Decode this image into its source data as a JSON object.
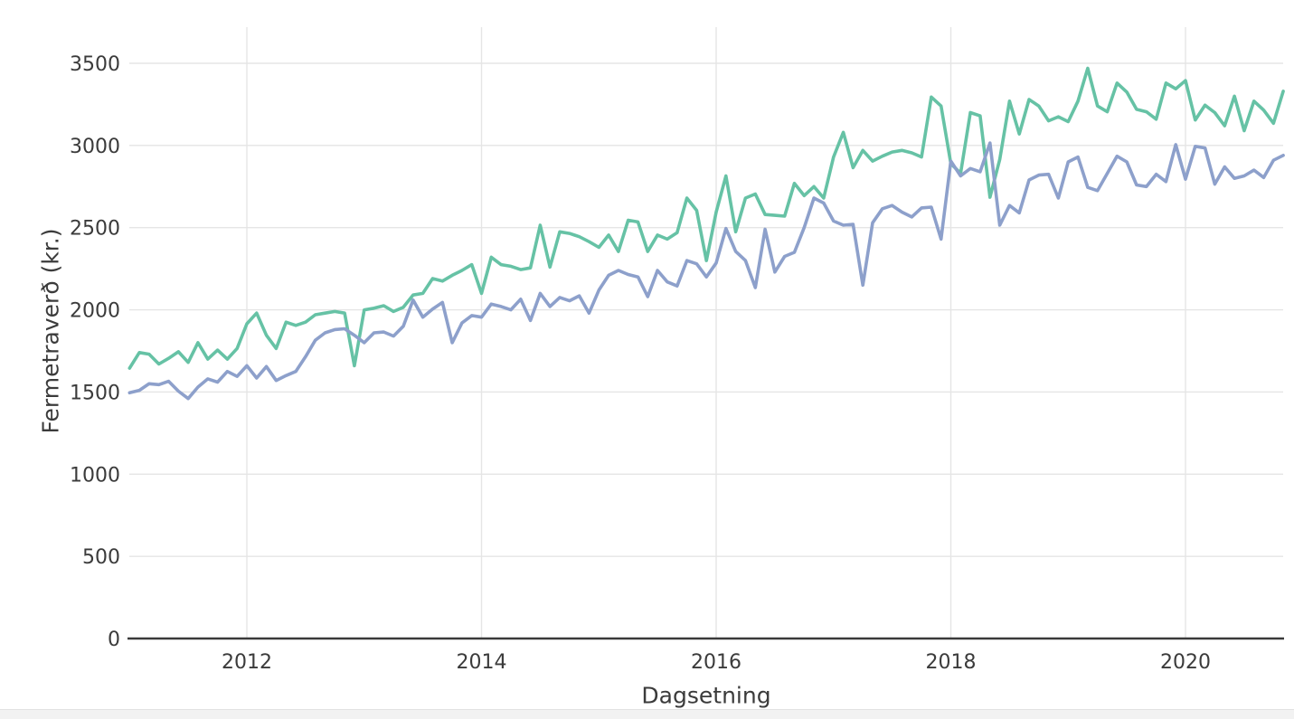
{
  "page": {
    "background_color": "#ffffff",
    "footer_strip_color": "#f2f2f2",
    "text_color": "#3b3b3b",
    "gridline_color": "#e5e5e5",
    "axisline_color": "#3a3a3a"
  },
  "chart_data": {
    "type": "line",
    "title": "",
    "xlabel": "Dagsetning",
    "ylabel": "Fermetraverð (kr.)",
    "grid": true,
    "legend_position": "none",
    "ylim": [
      0,
      3640
    ],
    "x_unit": "monthly",
    "x_range_start": "2011-01",
    "x_range_end": "2020-11",
    "x_ticks": [
      {
        "year": 2012,
        "label": "2012"
      },
      {
        "year": 2014,
        "label": "2014"
      },
      {
        "year": 2016,
        "label": "2016"
      },
      {
        "year": 2018,
        "label": "2018"
      },
      {
        "year": 2020,
        "label": "2020"
      }
    ],
    "y_ticks": [
      {
        "value": 0,
        "label": "0"
      },
      {
        "value": 500,
        "label": "500"
      },
      {
        "value": 1000,
        "label": "1000"
      },
      {
        "value": 1500,
        "label": "1500"
      },
      {
        "value": 2000,
        "label": "2000"
      },
      {
        "value": 2500,
        "label": "2500"
      },
      {
        "value": 3000,
        "label": "3000"
      },
      {
        "value": 3500,
        "label": "3500"
      }
    ],
    "series": [
      {
        "name": "series_green",
        "color": "#66c2a5",
        "values": [
          1645,
          1740,
          1730,
          1670,
          1705,
          1745,
          1680,
          1800,
          1700,
          1755,
          1700,
          1765,
          1915,
          1980,
          1845,
          1765,
          1925,
          1905,
          1925,
          1970,
          1980,
          1990,
          1980,
          1660,
          2000,
          2010,
          2025,
          1990,
          2015,
          2090,
          2100,
          2190,
          2175,
          2210,
          2240,
          2275,
          2100,
          2320,
          2275,
          2265,
          2245,
          2255,
          2515,
          2260,
          2475,
          2465,
          2445,
          2415,
          2380,
          2455,
          2355,
          2545,
          2535,
          2355,
          2455,
          2430,
          2470,
          2680,
          2605,
          2300,
          2595,
          2815,
          2475,
          2680,
          2705,
          2580,
          2575,
          2570,
          2770,
          2695,
          2750,
          2680,
          2930,
          3080,
          2865,
          2970,
          2905,
          2935,
          2960,
          2970,
          2955,
          2930,
          3295,
          3240,
          2890,
          2830,
          3200,
          3180,
          2685,
          2915,
          3270,
          3070,
          3280,
          3240,
          3150,
          3175,
          3145,
          3270,
          3470,
          3240,
          3205,
          3380,
          3325,
          3220,
          3205,
          3160,
          3380,
          3345,
          3395,
          3155,
          3245,
          3200,
          3120,
          3300,
          3090,
          3270,
          3215,
          3135,
          3330
        ]
      },
      {
        "name": "series_purple",
        "color": "#8da0cb",
        "values": [
          1495,
          1510,
          1550,
          1545,
          1565,
          1505,
          1460,
          1530,
          1580,
          1560,
          1625,
          1595,
          1660,
          1585,
          1655,
          1570,
          1600,
          1625,
          1715,
          1815,
          1860,
          1880,
          1885,
          1845,
          1800,
          1860,
          1865,
          1840,
          1900,
          2060,
          1955,
          2005,
          2045,
          1800,
          1920,
          1965,
          1955,
          2035,
          2020,
          2000,
          2065,
          1935,
          2100,
          2020,
          2075,
          2055,
          2085,
          1980,
          2120,
          2210,
          2240,
          2215,
          2200,
          2080,
          2240,
          2170,
          2145,
          2300,
          2280,
          2200,
          2285,
          2495,
          2355,
          2300,
          2135,
          2490,
          2230,
          2325,
          2350,
          2500,
          2680,
          2650,
          2540,
          2515,
          2520,
          2150,
          2530,
          2615,
          2635,
          2595,
          2565,
          2620,
          2625,
          2430,
          2905,
          2815,
          2860,
          2840,
          3015,
          2515,
          2635,
          2590,
          2790,
          2820,
          2825,
          2680,
          2900,
          2930,
          2745,
          2725,
          2830,
          2935,
          2900,
          2760,
          2750,
          2825,
          2780,
          3005,
          2795,
          2995,
          2985,
          2765,
          2870,
          2800,
          2815,
          2850,
          2805,
          2910,
          2940
        ]
      }
    ]
  }
}
